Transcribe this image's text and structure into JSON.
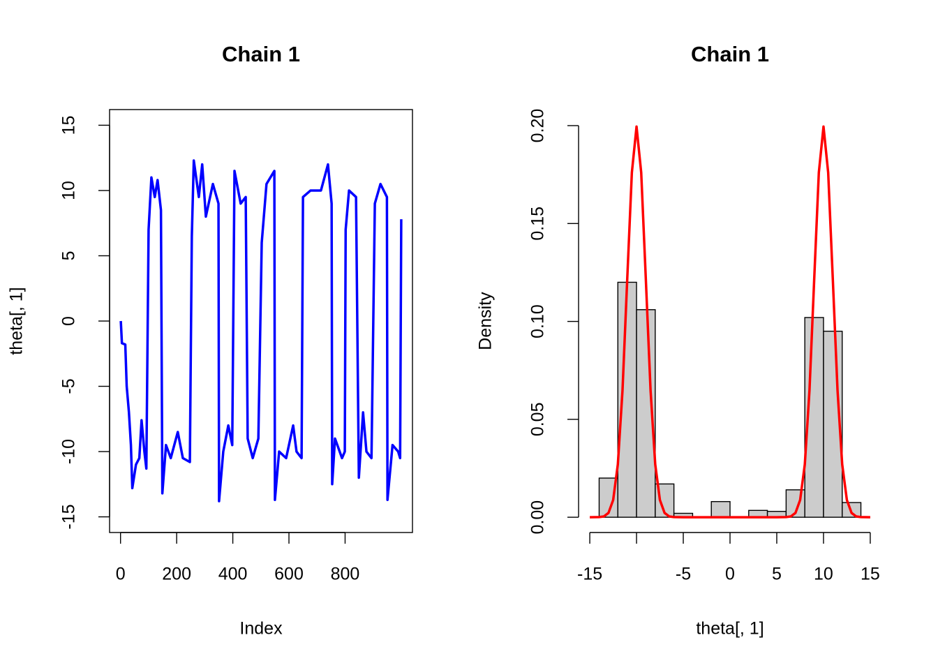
{
  "chart_data": [
    {
      "type": "line",
      "title": "Chain 1",
      "xlabel": "Index",
      "ylabel": "theta[, 1]",
      "color": "#0000ff",
      "frame": true,
      "x": [
        1,
        5,
        17,
        22,
        30,
        37,
        42,
        55,
        67,
        75,
        85,
        92,
        100,
        110,
        122,
        132,
        144,
        149,
        162,
        179,
        204,
        222,
        247,
        254,
        261,
        279,
        291,
        304,
        329,
        349,
        351,
        366,
        384,
        398,
        406,
        428,
        446,
        453,
        471,
        491,
        503,
        520,
        548,
        550,
        565,
        590,
        615,
        627,
        645,
        650,
        677,
        714,
        739,
        752,
        754,
        764,
        789,
        799,
        802,
        814,
        839,
        849,
        864,
        876,
        894,
        906,
        926,
        949,
        951,
        969,
        989,
        996,
        1000
      ],
      "values": [
        0,
        -1.7,
        -1.8,
        -5,
        -7,
        -9.5,
        -12.8,
        -11,
        -10.5,
        -7.6,
        -10,
        -11.3,
        7,
        11,
        9.5,
        10.8,
        8.5,
        -13.2,
        -9.5,
        -10.5,
        -8.5,
        -10.5,
        -10.8,
        6.5,
        12.3,
        9.5,
        12,
        8,
        10.5,
        9,
        -13.8,
        -10,
        -8,
        -9.5,
        11.5,
        9,
        9.5,
        -9,
        -10.5,
        -9,
        6,
        10.5,
        11.5,
        -13.7,
        -10,
        -10.5,
        -8,
        -10,
        -10.5,
        9.5,
        10,
        10,
        12,
        9,
        -12.5,
        -9,
        -10.5,
        -10,
        7,
        10,
        9.5,
        -12,
        -7,
        -10,
        -10.5,
        9,
        10.5,
        9.5,
        -13.7,
        -9.5,
        -10,
        -10.5,
        7.8
      ],
      "xlim": [
        -39,
        1040
      ],
      "ylim": [
        -16.2,
        16.2
      ],
      "xticks": [
        0,
        200,
        400,
        600,
        800
      ],
      "yticks": [
        -15,
        -10,
        -5,
        0,
        5,
        10,
        15
      ]
    },
    {
      "type": "histogram",
      "title": "Chain 1",
      "xlabel": "theta[, 1]",
      "ylabel": "Density",
      "color": "#cccccc",
      "frame": false,
      "bins": [
        -14,
        -12,
        -10,
        -8,
        -6,
        -4,
        -2,
        0,
        2,
        4,
        6,
        8,
        10,
        12,
        14
      ],
      "values": [
        0.02,
        0.12,
        0.106,
        0.017,
        0.002,
        0,
        0.008,
        0,
        0.0035,
        0.003,
        0.014,
        0.102,
        0.095,
        0.0075
      ],
      "curve": {
        "color": "#ff0000",
        "x": [
          -15,
          -14,
          -13.5,
          -13,
          -12.5,
          -12,
          -11.5,
          -11,
          -10.5,
          -10,
          -9.5,
          -9,
          -8.5,
          -8,
          -7.5,
          -7,
          -6.5,
          -6,
          -5,
          -4,
          -3,
          -2,
          -1,
          0,
          1,
          2,
          3,
          4,
          5,
          6,
          6.5,
          7,
          7.5,
          8,
          8.5,
          9,
          9.5,
          10,
          10.5,
          11,
          11.5,
          12,
          12.5,
          13,
          13.5,
          14,
          15
        ],
        "values": [
          0,
          0.0001,
          0.0004,
          0.0022,
          0.0088,
          0.027,
          0.0648,
          0.121,
          0.176,
          0.1995,
          0.176,
          0.121,
          0.0648,
          0.027,
          0.0088,
          0.0022,
          0.0004,
          0.0001,
          0,
          0,
          0,
          0,
          0,
          0,
          0,
          0,
          0,
          0,
          0,
          0.0001,
          0.0004,
          0.0022,
          0.0088,
          0.027,
          0.0648,
          0.121,
          0.176,
          0.1995,
          0.176,
          0.121,
          0.0648,
          0.027,
          0.0088,
          0.0022,
          0.0004,
          0.0001,
          0
        ]
      },
      "xlim": [
        -16.2,
        16.2
      ],
      "ylim": [
        -0.0078,
        0.2082
      ],
      "xticks": [
        -15,
        {
          "value": -10,
          "label": null
        },
        -5,
        0,
        5,
        10,
        15
      ],
      "yticks": [
        {
          "value": 0,
          "label": "0.00"
        },
        0.05,
        {
          "value": 0.1,
          "label": "0.10"
        },
        0.15,
        {
          "value": 0.2,
          "label": "0.20"
        }
      ]
    }
  ]
}
